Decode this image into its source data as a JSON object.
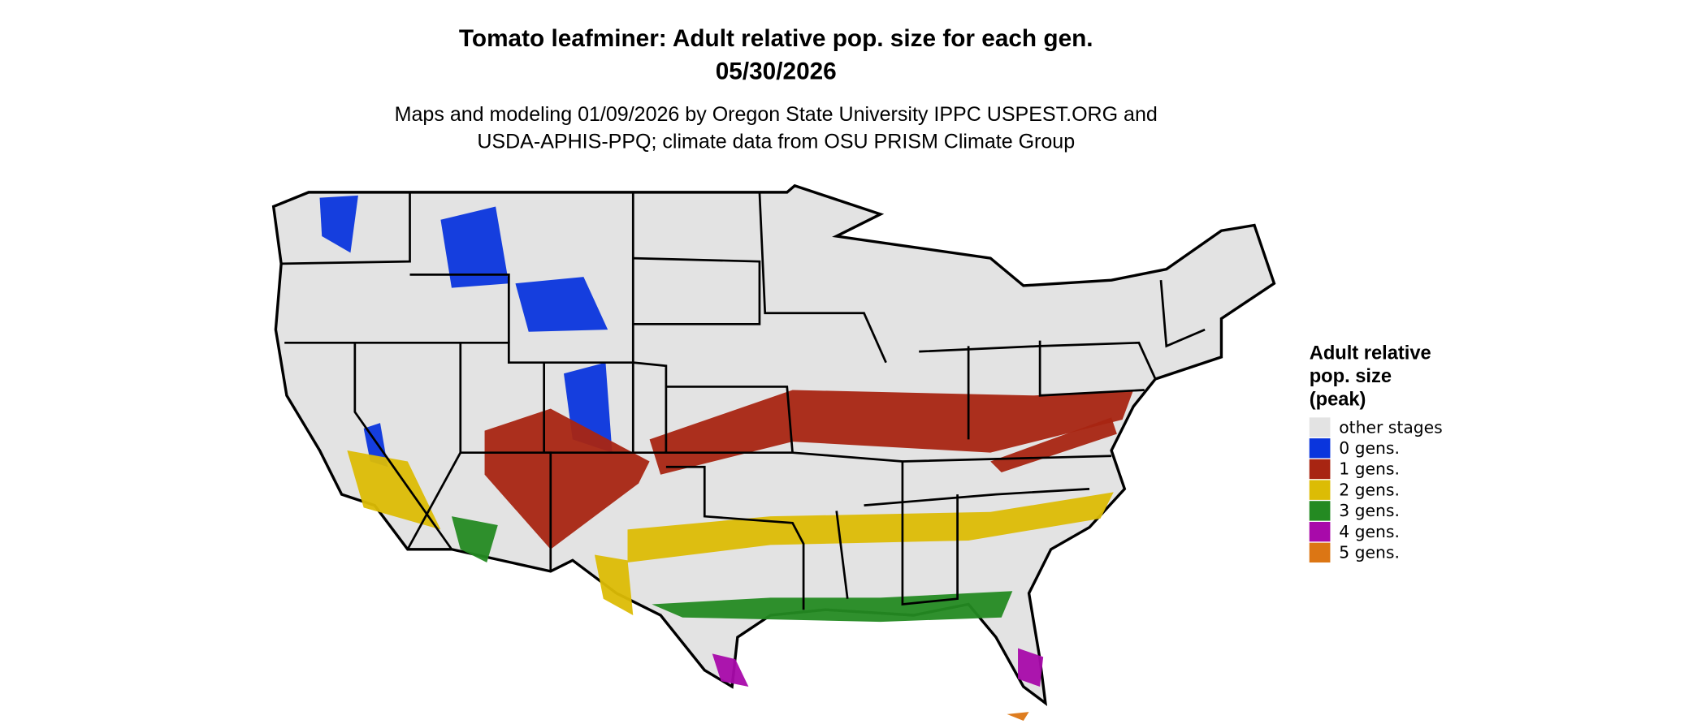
{
  "header": {
    "title": [
      "Tomato leafminer: Adult relative pop. size for each gen.",
      "05/30/2026"
    ],
    "subtitle": [
      "Maps and modeling 01/09/2026 by Oregon State University IPPC USPEST.ORG and",
      "USDA-APHIS-PPQ; climate data from OSU PRISM Climate Group"
    ]
  },
  "legend": {
    "title": [
      "Adult relative",
      "pop. size",
      "(peak)"
    ],
    "items": [
      {
        "label": "other stages",
        "color": "#e3e3e3"
      },
      {
        "label": "0 gens.",
        "color": "#0a35dd"
      },
      {
        "label": "1 gens.",
        "color": "#a82512"
      },
      {
        "label": "2 gens.",
        "color": "#dcbc05"
      },
      {
        "label": "3 gens.",
        "color": "#248a22"
      },
      {
        "label": "4 gens.",
        "color": "#a80aaa"
      },
      {
        "label": "5 gens.",
        "color": "#dc7614"
      }
    ]
  }
}
